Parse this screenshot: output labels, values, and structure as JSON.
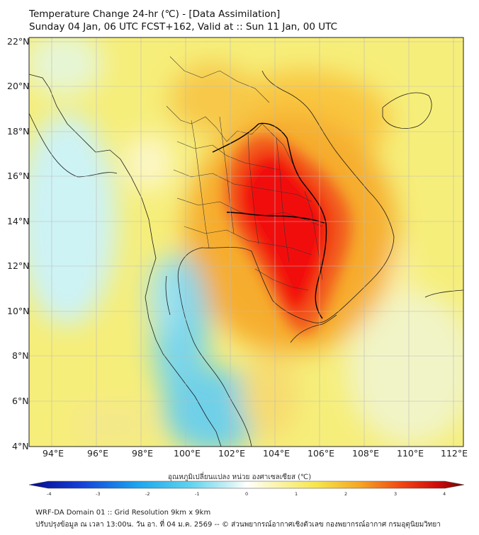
{
  "header": {
    "title_line1": "Temperature Change 24-hr (℃) - [Data Assimilation]",
    "title_line2": "Sunday 04 Jan, 06 UTC FCST+162, Valid at :: Sun 11 Jan, 00 UTC"
  },
  "map": {
    "lat_labels": [
      "22°N",
      "20°N",
      "18°N",
      "16°N",
      "14°N",
      "12°N",
      "10°N",
      "8°N",
      "6°N",
      "4°N"
    ],
    "lon_labels": [
      "94°E",
      "96°E",
      "98°E",
      "100°E",
      "102°E",
      "104°E",
      "106°E",
      "108°E",
      "110°E",
      "112°E"
    ],
    "lon_range": [
      93,
      112.5
    ],
    "lat_range": [
      4,
      22.2
    ]
  },
  "colorbar": {
    "label": "อุณหภูมิเปลี่ยนแปลง หน่วย องศาเซลเซียส (℃)",
    "ticks": [
      "-4",
      "-3",
      "-2",
      "-1",
      "0",
      "1",
      "2",
      "3",
      "4"
    ],
    "range": [
      -4,
      4
    ]
  },
  "footer": {
    "line1": "WRF-DA Domain 01 :: Grid Resolution 9km x 9km",
    "line2": "ปรับปรุงข้อมูล ณ เวลา 13:00น. วัน อา. ที่ 04 ม.ค. 2569 -- © ส่วนพยากรณ์อากาศเชิงตัวเลข กองพยากรณ์อากาศ กรมอุตุนิยมวิทยา"
  }
}
